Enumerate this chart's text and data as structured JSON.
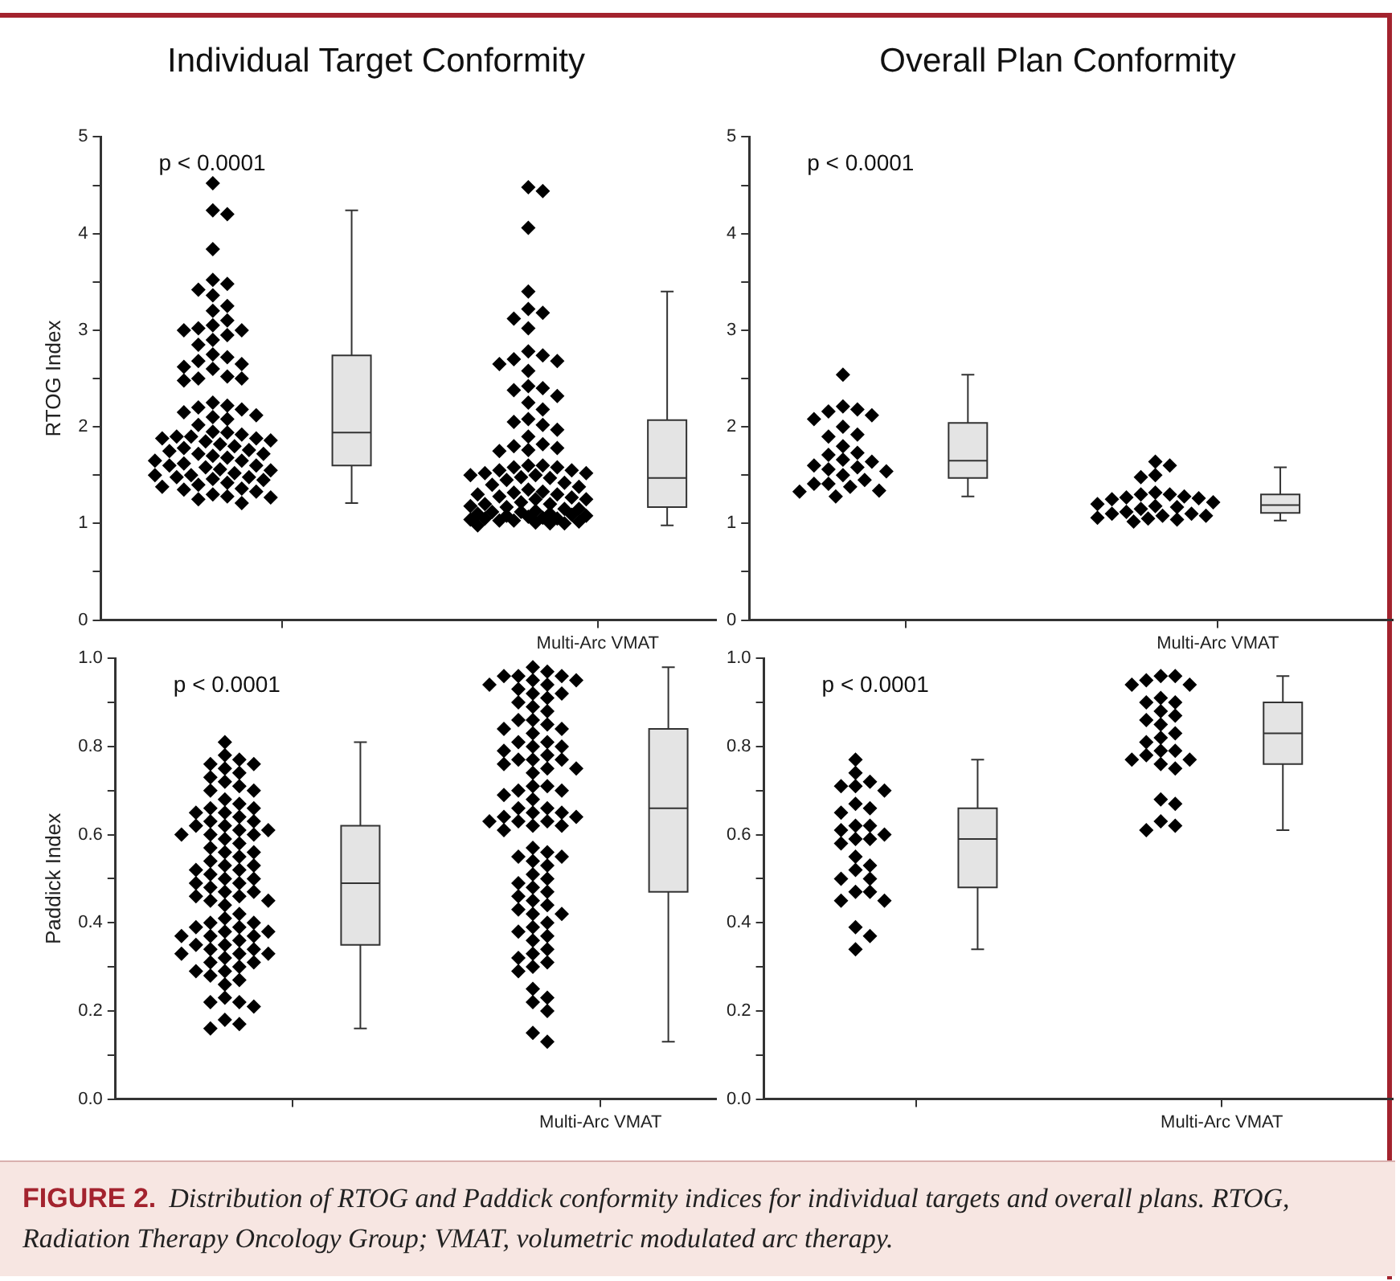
{
  "chart_data": [
    {
      "type": "box",
      "title": "Individual Target Conformity",
      "ylabel": "RTOG Index",
      "categories": [
        null,
        "Multi-Arc VMAT"
      ],
      "ylim": [
        0,
        5
      ],
      "yticks": [
        0,
        {
          "value": 0.5,
          "label": null
        },
        1,
        {
          "value": 1.5,
          "label": null
        },
        2,
        {
          "value": 2.5,
          "label": null
        },
        3,
        {
          "value": 3.5,
          "label": null
        },
        4,
        {
          "value": 4.5,
          "label": null
        },
        5
      ],
      "boxes": [
        {
          "low": 1.21,
          "q1": 1.6,
          "median": 1.94,
          "q3": 2.74,
          "high": 4.24
        },
        {
          "low": 0.98,
          "q1": 1.17,
          "median": 1.47,
          "q3": 2.07,
          "high": 3.4
        }
      ],
      "series": [
        {
          "type": "scatter",
          "color": "#000000",
          "marker": "diamond",
          "x": [
            null,
            null,
            null,
            null,
            null,
            null,
            null,
            null,
            null,
            null,
            null,
            null,
            null,
            null,
            null,
            null,
            null,
            null,
            null,
            null,
            null,
            null,
            null,
            null,
            null,
            null,
            null,
            null,
            null,
            null,
            null,
            null,
            null,
            null,
            null,
            null,
            null,
            null,
            null,
            null,
            null,
            null,
            null,
            null,
            null,
            null,
            null,
            null,
            null,
            null,
            null,
            null,
            null,
            null,
            null,
            null,
            null,
            null,
            null,
            null,
            null,
            null,
            null,
            null,
            null,
            null,
            null,
            null,
            null,
            null,
            null,
            null,
            null,
            null,
            null,
            null,
            null,
            null,
            null,
            null,
            null,
            "Multi-Arc VMAT",
            "Multi-Arc VMAT",
            "Multi-Arc VMAT",
            "Multi-Arc VMAT",
            "Multi-Arc VMAT",
            "Multi-Arc VMAT",
            "Multi-Arc VMAT",
            "Multi-Arc VMAT",
            "Multi-Arc VMAT",
            "Multi-Arc VMAT",
            "Multi-Arc VMAT",
            "Multi-Arc VMAT",
            "Multi-Arc VMAT",
            "Multi-Arc VMAT",
            "Multi-Arc VMAT",
            "Multi-Arc VMAT",
            "Multi-Arc VMAT",
            "Multi-Arc VMAT",
            "Multi-Arc VMAT",
            "Multi-Arc VMAT",
            "Multi-Arc VMAT",
            "Multi-Arc VMAT",
            "Multi-Arc VMAT",
            "Multi-Arc VMAT",
            "Multi-Arc VMAT",
            "Multi-Arc VMAT",
            "Multi-Arc VMAT",
            "Multi-Arc VMAT",
            "Multi-Arc VMAT",
            "Multi-Arc VMAT",
            "Multi-Arc VMAT",
            "Multi-Arc VMAT",
            "Multi-Arc VMAT",
            "Multi-Arc VMAT",
            "Multi-Arc VMAT",
            "Multi-Arc VMAT",
            "Multi-Arc VMAT",
            "Multi-Arc VMAT",
            "Multi-Arc VMAT",
            "Multi-Arc VMAT",
            "Multi-Arc VMAT",
            "Multi-Arc VMAT",
            "Multi-Arc VMAT",
            "Multi-Arc VMAT",
            "Multi-Arc VMAT",
            "Multi-Arc VMAT",
            "Multi-Arc VMAT",
            "Multi-Arc VMAT",
            "Multi-Arc VMAT",
            "Multi-Arc VMAT",
            "Multi-Arc VMAT",
            "Multi-Arc VMAT",
            "Multi-Arc VMAT",
            "Multi-Arc VMAT",
            "Multi-Arc VMAT",
            "Multi-Arc VMAT",
            "Multi-Arc VMAT",
            "Multi-Arc VMAT",
            "Multi-Arc VMAT",
            "Multi-Arc VMAT",
            "Multi-Arc VMAT",
            "Multi-Arc VMAT",
            "Multi-Arc VMAT",
            "Multi-Arc VMAT",
            "Multi-Arc VMAT",
            "Multi-Arc VMAT",
            "Multi-Arc VMAT",
            "Multi-Arc VMAT",
            "Multi-Arc VMAT",
            "Multi-Arc VMAT",
            "Multi-Arc VMAT",
            "Multi-Arc VMAT",
            "Multi-Arc VMAT",
            "Multi-Arc VMAT",
            "Multi-Arc VMAT",
            "Multi-Arc VMAT",
            "Multi-Arc VMAT",
            "Multi-Arc VMAT",
            "Multi-Arc VMAT",
            "Multi-Arc VMAT",
            "Multi-Arc VMAT",
            "Multi-Arc VMAT"
          ],
          "values": [
            4.52,
            4.24,
            4.2,
            3.84,
            3.52,
            3.48,
            3.42,
            3.36,
            3.25,
            3.2,
            3.1,
            3.05,
            3.02,
            3.0,
            3.0,
            2.95,
            2.9,
            2.85,
            2.75,
            2.72,
            2.68,
            2.65,
            2.62,
            2.6,
            2.52,
            2.5,
            2.5,
            2.48,
            2.25,
            2.22,
            2.2,
            2.18,
            2.15,
            2.12,
            2.1,
            2.08,
            2.02,
            1.95,
            1.94,
            1.92,
            1.9,
            1.9,
            1.88,
            1.88,
            1.86,
            1.85,
            1.82,
            1.8,
            1.78,
            1.76,
            1.75,
            1.72,
            1.72,
            1.7,
            1.68,
            1.65,
            1.65,
            1.62,
            1.6,
            1.6,
            1.58,
            1.56,
            1.55,
            1.52,
            1.5,
            1.5,
            1.48,
            1.48,
            1.46,
            1.45,
            1.42,
            1.4,
            1.38,
            1.36,
            1.35,
            1.33,
            1.3,
            1.28,
            1.27,
            1.25,
            1.21,
            4.48,
            4.44,
            4.06,
            3.4,
            3.22,
            3.18,
            3.12,
            3.02,
            2.78,
            2.74,
            2.7,
            2.68,
            2.65,
            2.58,
            2.42,
            2.4,
            2.38,
            2.32,
            2.25,
            2.18,
            2.08,
            2.05,
            2.02,
            1.97,
            1.9,
            1.82,
            1.8,
            1.78,
            1.76,
            1.75,
            1.6,
            1.6,
            1.58,
            1.58,
            1.55,
            1.55,
            1.52,
            1.52,
            1.5,
            1.5,
            1.48,
            1.47,
            1.45,
            1.42,
            1.4,
            1.38,
            1.35,
            1.33,
            1.32,
            1.3,
            1.3,
            1.28,
            1.27,
            1.25,
            1.25,
            1.22,
            1.2,
            1.2,
            1.18,
            1.17,
            1.15,
            1.15,
            1.13,
            1.12,
            1.12,
            1.1,
            1.1,
            1.09,
            1.08,
            1.08,
            1.07,
            1.06,
            1.05,
            1.05,
            1.04,
            1.03,
            1.03,
            1.02,
            1.01,
            1.0,
            1.0,
            0.98
          ]
        }
      ],
      "annotations": [
        "p < 0.0001"
      ]
    },
    {
      "type": "box",
      "title": "Overall Plan Conformity",
      "categories": [
        null,
        "Multi-Arc VMAT"
      ],
      "ylim": [
        0,
        5
      ],
      "yticks": [
        0,
        {
          "value": 0.5,
          "label": null
        },
        1,
        {
          "value": 1.5,
          "label": null
        },
        2,
        {
          "value": 2.5,
          "label": null
        },
        3,
        {
          "value": 3.5,
          "label": null
        },
        4,
        {
          "value": 4.5,
          "label": null
        },
        5
      ],
      "boxes": [
        {
          "low": 1.28,
          "q1": 1.47,
          "median": 1.65,
          "q3": 2.04,
          "high": 2.54
        },
        {
          "low": 1.03,
          "q1": 1.11,
          "median": 1.19,
          "q3": 1.3,
          "high": 1.58
        }
      ],
      "series": [
        {
          "type": "scatter",
          "color": "#000000",
          "marker": "diamond",
          "x": [
            null,
            null,
            null,
            null,
            null,
            null,
            null,
            null,
            null,
            null,
            null,
            null,
            null,
            null,
            null,
            null,
            null,
            null,
            null,
            null,
            null,
            null,
            null,
            null,
            null,
            null,
            "Multi-Arc VMAT",
            "Multi-Arc VMAT",
            "Multi-Arc VMAT",
            "Multi-Arc VMAT",
            "Multi-Arc VMAT",
            "Multi-Arc VMAT",
            "Multi-Arc VMAT",
            "Multi-Arc VMAT",
            "Multi-Arc VMAT",
            "Multi-Arc VMAT",
            "Multi-Arc VMAT",
            "Multi-Arc VMAT",
            "Multi-Arc VMAT",
            "Multi-Arc VMAT",
            "Multi-Arc VMAT",
            "Multi-Arc VMAT",
            "Multi-Arc VMAT",
            "Multi-Arc VMAT",
            "Multi-Arc VMAT",
            "Multi-Arc VMAT",
            "Multi-Arc VMAT",
            "Multi-Arc VMAT",
            "Multi-Arc VMAT",
            "Multi-Arc VMAT",
            "Multi-Arc VMAT"
          ],
          "values": [
            2.54,
            2.21,
            2.18,
            2.16,
            2.12,
            2.08,
            2.0,
            1.92,
            1.9,
            1.8,
            1.73,
            1.71,
            1.66,
            1.64,
            1.6,
            1.58,
            1.56,
            1.54,
            1.5,
            1.45,
            1.41,
            1.41,
            1.38,
            1.34,
            1.33,
            1.28,
            1.64,
            1.6,
            1.5,
            1.48,
            1.32,
            1.3,
            1.3,
            1.28,
            1.27,
            1.26,
            1.25,
            1.22,
            1.2,
            1.18,
            1.17,
            1.15,
            1.12,
            1.1,
            1.1,
            1.08,
            1.08,
            1.06,
            1.05,
            1.04,
            1.02
          ]
        }
      ],
      "annotations": [
        "p < 0.0001"
      ]
    },
    {
      "type": "box",
      "ylabel": "Paddick Index",
      "categories": [
        null,
        "Multi-Arc VMAT"
      ],
      "ylim": [
        0,
        1
      ],
      "yticks": [
        {
          "value": 0,
          "label": "0.0"
        },
        {
          "value": 0.1,
          "label": null
        },
        0.2,
        {
          "value": 0.3,
          "label": null
        },
        0.4,
        {
          "value": 0.5,
          "label": null
        },
        0.6,
        {
          "value": 0.7,
          "label": null
        },
        0.8,
        {
          "value": 0.9,
          "label": null
        },
        {
          "value": 1,
          "label": "1.0"
        }
      ],
      "boxes": [
        {
          "low": 0.16,
          "q1": 0.35,
          "median": 0.49,
          "q3": 0.62,
          "high": 0.81
        },
        {
          "low": 0.13,
          "q1": 0.47,
          "median": 0.66,
          "q3": 0.84,
          "high": 0.98
        }
      ],
      "series": [
        {
          "type": "scatter",
          "color": "#000000",
          "marker": "diamond",
          "x": [
            null,
            null,
            null,
            null,
            null,
            null,
            null,
            null,
            null,
            null,
            null,
            null,
            null,
            null,
            null,
            null,
            null,
            null,
            null,
            null,
            null,
            null,
            null,
            null,
            null,
            null,
            null,
            null,
            null,
            null,
            null,
            null,
            null,
            null,
            null,
            null,
            null,
            null,
            null,
            null,
            null,
            null,
            null,
            null,
            null,
            null,
            null,
            null,
            null,
            null,
            null,
            null,
            null,
            null,
            null,
            null,
            null,
            null,
            null,
            null,
            null,
            null,
            null,
            null,
            null,
            null,
            null,
            null,
            null,
            null,
            null,
            null,
            null,
            null,
            null,
            null,
            null,
            null,
            null,
            null,
            null,
            null,
            null,
            null,
            null,
            null,
            null,
            "Multi-Arc VMAT",
            "Multi-Arc VMAT",
            "Multi-Arc VMAT",
            "Multi-Arc VMAT",
            "Multi-Arc VMAT",
            "Multi-Arc VMAT",
            "Multi-Arc VMAT",
            "Multi-Arc VMAT",
            "Multi-Arc VMAT",
            "Multi-Arc VMAT",
            "Multi-Arc VMAT",
            "Multi-Arc VMAT",
            "Multi-Arc VMAT",
            "Multi-Arc VMAT",
            "Multi-Arc VMAT",
            "Multi-Arc VMAT",
            "Multi-Arc VMAT",
            "Multi-Arc VMAT",
            "Multi-Arc VMAT",
            "Multi-Arc VMAT",
            "Multi-Arc VMAT",
            "Multi-Arc VMAT",
            "Multi-Arc VMAT",
            "Multi-Arc VMAT",
            "Multi-Arc VMAT",
            "Multi-Arc VMAT",
            "Multi-Arc VMAT",
            "Multi-Arc VMAT",
            "Multi-Arc VMAT",
            "Multi-Arc VMAT",
            "Multi-Arc VMAT",
            "Multi-Arc VMAT",
            "Multi-Arc VMAT",
            "Multi-Arc VMAT",
            "Multi-Arc VMAT",
            "Multi-Arc VMAT",
            "Multi-Arc VMAT",
            "Multi-Arc VMAT",
            "Multi-Arc VMAT",
            "Multi-Arc VMAT",
            "Multi-Arc VMAT",
            "Multi-Arc VMAT",
            "Multi-Arc VMAT",
            "Multi-Arc VMAT",
            "Multi-Arc VMAT",
            "Multi-Arc VMAT",
            "Multi-Arc VMAT",
            "Multi-Arc VMAT",
            "Multi-Arc VMAT",
            "Multi-Arc VMAT",
            "Multi-Arc VMAT",
            "Multi-Arc VMAT",
            "Multi-Arc VMAT",
            "Multi-Arc VMAT",
            "Multi-Arc VMAT",
            "Multi-Arc VMAT",
            "Multi-Arc VMAT",
            "Multi-Arc VMAT",
            "Multi-Arc VMAT",
            "Multi-Arc VMAT",
            "Multi-Arc VMAT",
            "Multi-Arc VMAT",
            "Multi-Arc VMAT",
            "Multi-Arc VMAT",
            "Multi-Arc VMAT",
            "Multi-Arc VMAT",
            "Multi-Arc VMAT",
            "Multi-Arc VMAT",
            "Multi-Arc VMAT",
            "Multi-Arc VMAT",
            "Multi-Arc VMAT",
            "Multi-Arc VMAT",
            "Multi-Arc VMAT",
            "Multi-Arc VMAT",
            "Multi-Arc VMAT",
            "Multi-Arc VMAT",
            "Multi-Arc VMAT",
            "Multi-Arc VMAT",
            "Multi-Arc VMAT",
            "Multi-Arc VMAT",
            "Multi-Arc VMAT",
            "Multi-Arc VMAT",
            "Multi-Arc VMAT",
            "Multi-Arc VMAT",
            "Multi-Arc VMAT",
            "Multi-Arc VMAT",
            "Multi-Arc VMAT"
          ],
          "values": [
            0.81,
            0.78,
            0.77,
            0.76,
            0.76,
            0.75,
            0.74,
            0.73,
            0.72,
            0.71,
            0.7,
            0.7,
            0.68,
            0.67,
            0.66,
            0.66,
            0.65,
            0.65,
            0.64,
            0.63,
            0.63,
            0.62,
            0.62,
            0.61,
            0.61,
            0.6,
            0.6,
            0.6,
            0.59,
            0.58,
            0.57,
            0.56,
            0.56,
            0.55,
            0.54,
            0.53,
            0.53,
            0.52,
            0.52,
            0.51,
            0.5,
            0.5,
            0.49,
            0.49,
            0.48,
            0.47,
            0.47,
            0.46,
            0.46,
            0.45,
            0.45,
            0.44,
            0.42,
            0.41,
            0.4,
            0.4,
            0.39,
            0.39,
            0.38,
            0.38,
            0.37,
            0.37,
            0.37,
            0.36,
            0.35,
            0.35,
            0.34,
            0.34,
            0.33,
            0.33,
            0.33,
            0.32,
            0.31,
            0.31,
            0.3,
            0.29,
            0.29,
            0.28,
            0.27,
            0.26,
            0.23,
            0.22,
            0.22,
            0.21,
            0.18,
            0.17,
            0.16,
            0.98,
            0.97,
            0.96,
            0.96,
            0.96,
            0.95,
            0.95,
            0.94,
            0.94,
            0.93,
            0.92,
            0.92,
            0.91,
            0.9,
            0.89,
            0.88,
            0.86,
            0.86,
            0.85,
            0.84,
            0.84,
            0.83,
            0.81,
            0.81,
            0.8,
            0.8,
            0.79,
            0.78,
            0.77,
            0.77,
            0.77,
            0.76,
            0.75,
            0.75,
            0.74,
            0.71,
            0.71,
            0.7,
            0.7,
            0.69,
            0.68,
            0.66,
            0.66,
            0.65,
            0.65,
            0.64,
            0.64,
            0.63,
            0.63,
            0.63,
            0.62,
            0.62,
            0.61,
            0.57,
            0.56,
            0.55,
            0.55,
            0.54,
            0.53,
            0.51,
            0.5,
            0.49,
            0.48,
            0.47,
            0.46,
            0.45,
            0.44,
            0.43,
            0.42,
            0.42,
            0.4,
            0.39,
            0.38,
            0.37,
            0.36,
            0.34,
            0.33,
            0.32,
            0.31,
            0.3,
            0.29,
            0.25,
            0.23,
            0.22,
            0.2,
            0.15,
            0.13
          ]
        }
      ],
      "annotations": [
        "p < 0.0001"
      ]
    },
    {
      "type": "box",
      "categories": [
        null,
        "Multi-Arc VMAT"
      ],
      "ylim": [
        0,
        1
      ],
      "yticks": [
        {
          "value": 0,
          "label": "0.0"
        },
        {
          "value": 0.1,
          "label": null
        },
        0.2,
        {
          "value": 0.3,
          "label": null
        },
        0.4,
        {
          "value": 0.5,
          "label": null
        },
        0.6,
        {
          "value": 0.7,
          "label": null
        },
        0.8,
        {
          "value": 0.9,
          "label": null
        },
        {
          "value": 1,
          "label": "1.0"
        }
      ],
      "boxes": [
        {
          "low": 0.34,
          "q1": 0.48,
          "median": 0.59,
          "q3": 0.66,
          "high": 0.77
        },
        {
          "low": 0.61,
          "q1": 0.76,
          "median": 0.83,
          "q3": 0.9,
          "high": 0.96
        }
      ],
      "series": [
        {
          "type": "scatter",
          "color": "#000000",
          "marker": "diamond",
          "x": [
            null,
            null,
            null,
            null,
            null,
            null,
            null,
            null,
            null,
            null,
            null,
            null,
            null,
            null,
            null,
            null,
            null,
            null,
            null,
            null,
            null,
            null,
            null,
            null,
            null,
            null,
            null,
            null,
            "Multi-Arc VMAT",
            "Multi-Arc VMAT",
            "Multi-Arc VMAT",
            "Multi-Arc VMAT",
            "Multi-Arc VMAT",
            "Multi-Arc VMAT",
            "Multi-Arc VMAT",
            "Multi-Arc VMAT",
            "Multi-Arc VMAT",
            "Multi-Arc VMAT",
            "Multi-Arc VMAT",
            "Multi-Arc VMAT",
            "Multi-Arc VMAT",
            "Multi-Arc VMAT",
            "Multi-Arc VMAT",
            "Multi-Arc VMAT",
            "Multi-Arc VMAT",
            "Multi-Arc VMAT",
            "Multi-Arc VMAT",
            "Multi-Arc VMAT",
            "Multi-Arc VMAT",
            "Multi-Arc VMAT",
            "Multi-Arc VMAT",
            "Multi-Arc VMAT",
            "Multi-Arc VMAT",
            "Multi-Arc VMAT",
            "Multi-Arc VMAT"
          ],
          "values": [
            0.77,
            0.74,
            0.72,
            0.71,
            0.71,
            0.7,
            0.67,
            0.66,
            0.65,
            0.62,
            0.62,
            0.61,
            0.6,
            0.59,
            0.59,
            0.58,
            0.55,
            0.53,
            0.52,
            0.5,
            0.5,
            0.47,
            0.47,
            0.45,
            0.45,
            0.39,
            0.37,
            0.34,
            0.96,
            0.96,
            0.95,
            0.94,
            0.94,
            0.91,
            0.9,
            0.9,
            0.88,
            0.87,
            0.86,
            0.85,
            0.83,
            0.82,
            0.81,
            0.79,
            0.79,
            0.78,
            0.77,
            0.77,
            0.76,
            0.75,
            0.68,
            0.67,
            0.63,
            0.62,
            0.61
          ]
        }
      ],
      "annotations": [
        "p < 0.0001"
      ]
    },
    {
      "type": "other",
      "title": "FIGURE 2.",
      "annotations": [
        "Distribution of RTOG and Paddick conformity indices for individual targets and overall plans. RTOG, Radiation Therapy Oncology Group; VMAT, volumetric modulated arc therapy."
      ]
    }
  ]
}
